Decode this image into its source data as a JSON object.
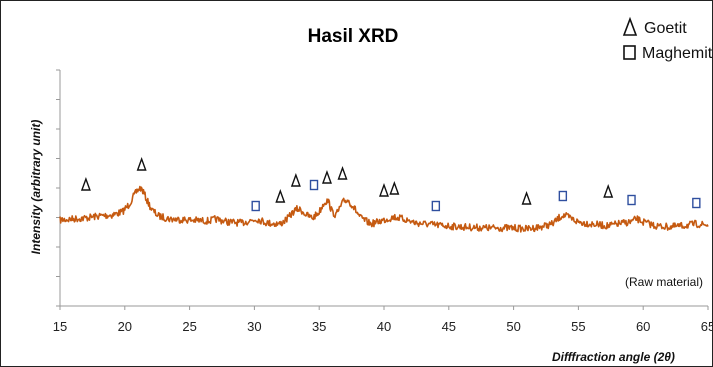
{
  "chart_data": {
    "type": "line",
    "title": "Hasil XRD",
    "xlabel": "Difffraction angle (2θ)",
    "ylabel": "Intensity (arbitrary unit)",
    "xlim": [
      15,
      65
    ],
    "xticks": [
      "15",
      "20",
      "25",
      "30",
      "35",
      "40",
      "45",
      "50",
      "55",
      "60",
      "65"
    ],
    "annotation": "(Raw material)",
    "series_color": "#C55A11",
    "grid": false,
    "legend": {
      "placement": "top-right",
      "entries": [
        {
          "symbol": "triangle",
          "label": "Goetit"
        },
        {
          "symbol": "square",
          "label": "Maghemit"
        }
      ]
    },
    "series": [
      {
        "x": [
          15,
          16,
          17,
          18,
          19,
          19.8,
          20.3,
          20.7,
          21.0,
          21.2,
          21.4,
          21.7,
          22.1,
          22.6,
          23.5,
          25,
          26.5,
          27,
          28,
          29,
          30.2,
          31,
          32,
          32.6,
          33.0,
          33.3,
          33.6,
          34,
          34.5,
          35.0,
          35.4,
          35.7,
          36.0,
          36.3,
          36.6,
          36.9,
          37.2,
          37.6,
          38.2,
          39,
          40,
          40.8,
          41.5,
          42.5,
          44,
          46,
          48,
          50,
          51,
          52,
          53,
          53.5,
          53.8,
          54.2,
          55,
          56,
          57.3,
          58,
          59,
          59.5,
          60,
          61,
          62,
          63,
          64,
          65
        ],
        "y": [
          220,
          219,
          218,
          216,
          215,
          212,
          205,
          196,
          190,
          188,
          191,
          200,
          210,
          216,
          219,
          220,
          221,
          219,
          222,
          223,
          219,
          223,
          224,
          218,
          212,
          209,
          210,
          215,
          218,
          212,
          202,
          201,
          212,
          215,
          208,
          201,
          200,
          206,
          218,
          224,
          220,
          217,
          219,
          223,
          225,
          227,
          228,
          228,
          229,
          227,
          224,
          218,
          215,
          217,
          222,
          224,
          226,
          224,
          222,
          219,
          222,
          226,
          227,
          226,
          224,
          225
        ]
      }
    ],
    "markers": [
      {
        "type": "triangle",
        "x": 17.0,
        "y": 185
      },
      {
        "type": "triangle",
        "x": 21.3,
        "y": 165
      },
      {
        "type": "square",
        "x": 30.1,
        "y": 206
      },
      {
        "type": "triangle",
        "x": 32.0,
        "y": 197
      },
      {
        "type": "triangle",
        "x": 33.2,
        "y": 181
      },
      {
        "type": "square",
        "x": 34.6,
        "y": 185
      },
      {
        "type": "triangle",
        "x": 35.6,
        "y": 178
      },
      {
        "type": "triangle",
        "x": 36.8,
        "y": 174
      },
      {
        "type": "triangle",
        "x": 40.0,
        "y": 191
      },
      {
        "type": "triangle",
        "x": 40.8,
        "y": 189
      },
      {
        "type": "square",
        "x": 44.0,
        "y": 206
      },
      {
        "type": "triangle",
        "x": 51.0,
        "y": 199
      },
      {
        "type": "square",
        "x": 53.8,
        "y": 196
      },
      {
        "type": "triangle",
        "x": 57.3,
        "y": 192
      },
      {
        "type": "square",
        "x": 59.1,
        "y": 200
      },
      {
        "type": "square",
        "x": 64.1,
        "y": 203
      }
    ]
  }
}
